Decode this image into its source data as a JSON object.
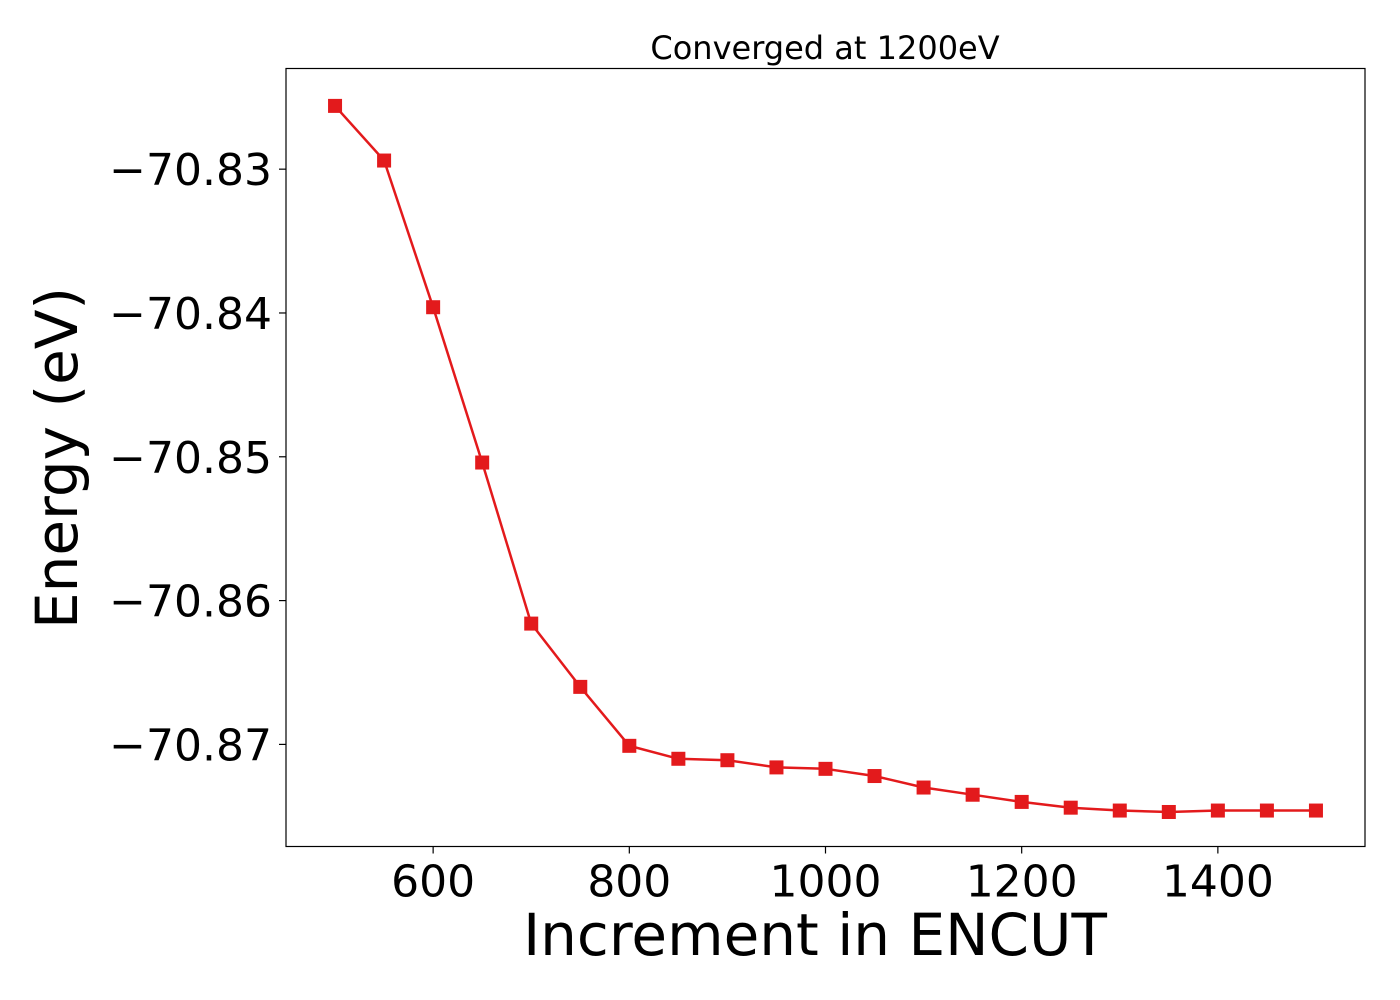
{
  "chart_data": {
    "type": "line",
    "title": "Converged at 1200eV",
    "xlabel": "Increment in ENCUT",
    "ylabel": "Energy (eV)",
    "xlim": [
      450,
      1550
    ],
    "ylim": [
      -70.8771,
      -70.823
    ],
    "xticks": [
      600,
      800,
      1000,
      1200,
      1400
    ],
    "xtick_labels": [
      "600",
      "800",
      "1000",
      "1200",
      "1400"
    ],
    "yticks": [
      -70.83,
      -70.84,
      -70.85,
      -70.86,
      -70.87
    ],
    "ytick_labels": [
      "−70.83",
      "−70.84",
      "−70.85",
      "−70.86",
      "−70.87"
    ],
    "grid": false,
    "legend": "none",
    "series": [
      {
        "color": "#e31a1c",
        "marker": "square",
        "x": [
          500,
          550,
          600,
          650,
          700,
          750,
          800,
          850,
          900,
          950,
          1000,
          1050,
          1100,
          1150,
          1200,
          1250,
          1300,
          1350,
          1400,
          1450,
          1500
        ],
        "y": [
          -70.8256,
          -70.8294,
          -70.8396,
          -70.8504,
          -70.8616,
          -70.866,
          -70.8701,
          -70.871,
          -70.8711,
          -70.8716,
          -70.8717,
          -70.8722,
          -70.873,
          -70.8735,
          -70.874,
          -70.8744,
          -70.8746,
          -70.8747,
          -70.8746,
          -70.8746,
          -70.8746
        ]
      }
    ]
  }
}
